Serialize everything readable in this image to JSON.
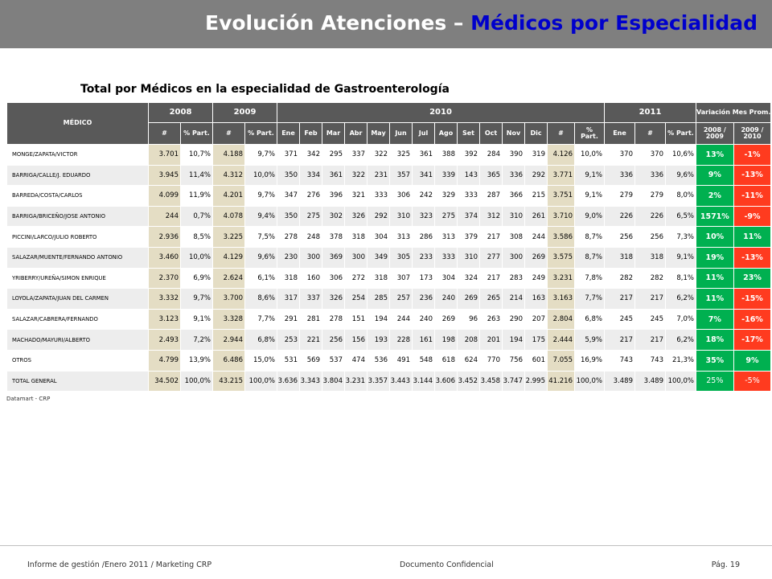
{
  "header": {
    "title_main": "Evolución Atenciones – ",
    "title_highlight": "Médicos por Especialidad"
  },
  "subtitle": "Total por Médicos en la especialidad de Gastroenterología",
  "table": {
    "medico_header": "MÉDICO",
    "years": [
      "2008",
      "2009",
      "2010",
      "2011"
    ],
    "variacion_header": "Variación Mes Prom.",
    "col_num": "#",
    "col_part": "% Part.",
    "months": [
      "Ene",
      "Feb",
      "Mar",
      "Abr",
      "May",
      "Jun",
      "Jul",
      "Ago",
      "Set",
      "Oct",
      "Nov",
      "Dic"
    ],
    "col_2010_part": "%\nPart.",
    "col_2011_ene": "Ene",
    "var_cols": [
      "2008 / 2009",
      "2009 / 2010"
    ],
    "rows": [
      {
        "name": "MONGE/ZAPATA/VICTOR",
        "c": [
          "3.701",
          "10,7%",
          "4.188",
          "9,7%",
          "371",
          "342",
          "295",
          "337",
          "322",
          "325",
          "361",
          "388",
          "392",
          "284",
          "390",
          "319",
          "4.126",
          "10,0%",
          "370",
          "370",
          "10,6%"
        ],
        "v1": "13%",
        "v1c": "green",
        "v2": "-1%",
        "v2c": "red"
      },
      {
        "name": "BARRIGA/CALLE/J. EDUARDO",
        "c": [
          "3.945",
          "11,4%",
          "4.312",
          "10,0%",
          "350",
          "334",
          "361",
          "322",
          "231",
          "357",
          "341",
          "339",
          "143",
          "365",
          "336",
          "292",
          "3.771",
          "9,1%",
          "336",
          "336",
          "9,6%"
        ],
        "v1": "9%",
        "v1c": "green",
        "v2": "-13%",
        "v2c": "red"
      },
      {
        "name": "BARREDA/COSTA/CARLOS",
        "c": [
          "4.099",
          "11,9%",
          "4.201",
          "9,7%",
          "347",
          "276",
          "396",
          "321",
          "333",
          "306",
          "242",
          "329",
          "333",
          "287",
          "366",
          "215",
          "3.751",
          "9,1%",
          "279",
          "279",
          "8,0%"
        ],
        "v1": "2%",
        "v1c": "green",
        "v2": "-11%",
        "v2c": "red"
      },
      {
        "name": "BARRIGA/BRICEÑO/JOSE ANTONIO",
        "c": [
          "244",
          "0,7%",
          "4.078",
          "9,4%",
          "350",
          "275",
          "302",
          "326",
          "292",
          "310",
          "323",
          "275",
          "374",
          "312",
          "310",
          "261",
          "3.710",
          "9,0%",
          "226",
          "226",
          "6,5%"
        ],
        "v1": "1571%",
        "v1c": "green",
        "v2": "-9%",
        "v2c": "red"
      },
      {
        "name": "PICCINI/LARCO/JULIO ROBERTO",
        "c": [
          "2.936",
          "8,5%",
          "3.225",
          "7,5%",
          "278",
          "248",
          "378",
          "318",
          "304",
          "313",
          "286",
          "313",
          "379",
          "217",
          "308",
          "244",
          "3.586",
          "8,7%",
          "256",
          "256",
          "7,3%"
        ],
        "v1": "10%",
        "v1c": "green",
        "v2": "11%",
        "v2c": "green"
      },
      {
        "name": "SALAZAR/MUENTE/FERNANDO ANTONIO",
        "c": [
          "3.460",
          "10,0%",
          "4.129",
          "9,6%",
          "230",
          "300",
          "369",
          "300",
          "349",
          "305",
          "233",
          "333",
          "310",
          "277",
          "300",
          "269",
          "3.575",
          "8,7%",
          "318",
          "318",
          "9,1%"
        ],
        "v1": "19%",
        "v1c": "green",
        "v2": "-13%",
        "v2c": "red"
      },
      {
        "name": "YRIBERRY/UREÑA/SIMON ENRIQUE",
        "c": [
          "2.370",
          "6,9%",
          "2.624",
          "6,1%",
          "318",
          "160",
          "306",
          "272",
          "318",
          "307",
          "173",
          "304",
          "324",
          "217",
          "283",
          "249",
          "3.231",
          "7,8%",
          "282",
          "282",
          "8,1%"
        ],
        "v1": "11%",
        "v1c": "green",
        "v2": "23%",
        "v2c": "green"
      },
      {
        "name": "LOYOLA/ZAPATA/JUAN DEL CARMEN",
        "c": [
          "3.332",
          "9,7%",
          "3.700",
          "8,6%",
          "317",
          "337",
          "326",
          "254",
          "285",
          "257",
          "236",
          "240",
          "269",
          "265",
          "214",
          "163",
          "3.163",
          "7,7%",
          "217",
          "217",
          "6,2%"
        ],
        "v1": "11%",
        "v1c": "green",
        "v2": "-15%",
        "v2c": "red"
      },
      {
        "name": "SALAZAR/CABRERA/FERNANDO",
        "c": [
          "3.123",
          "9,1%",
          "3.328",
          "7,7%",
          "291",
          "281",
          "278",
          "151",
          "194",
          "244",
          "240",
          "269",
          "96",
          "263",
          "290",
          "207",
          "2.804",
          "6,8%",
          "245",
          "245",
          "7,0%"
        ],
        "v1": "7%",
        "v1c": "green",
        "v2": "-16%",
        "v2c": "red"
      },
      {
        "name": "MACHADO/MAYURI/ALBERTO",
        "c": [
          "2.493",
          "7,2%",
          "2.944",
          "6,8%",
          "253",
          "221",
          "256",
          "156",
          "193",
          "228",
          "161",
          "198",
          "208",
          "201",
          "194",
          "175",
          "2.444",
          "5,9%",
          "217",
          "217",
          "6,2%"
        ],
        "v1": "18%",
        "v1c": "green",
        "v2": "-17%",
        "v2c": "red"
      },
      {
        "name": "OTROS",
        "c": [
          "4.799",
          "13,9%",
          "6.486",
          "15,0%",
          "531",
          "569",
          "537",
          "474",
          "536",
          "491",
          "548",
          "618",
          "624",
          "770",
          "756",
          "601",
          "7.055",
          "16,9%",
          "743",
          "743",
          "21,3%"
        ],
        "v1": "35%",
        "v1c": "green",
        "v2": "9%",
        "v2c": "green"
      },
      {
        "name": "TOTAL GENERAL",
        "c": [
          "34.502",
          "100,0%",
          "43.215",
          "100,0%",
          "3.636",
          "3.343",
          "3.804",
          "3.231",
          "3.357",
          "3.443",
          "3.144",
          "3.606",
          "3.452",
          "3.458",
          "3.747",
          "2.995",
          "41.216",
          "100,0%",
          "3.489",
          "3.489",
          "100,0%"
        ],
        "v1": "25%",
        "v1c": "green",
        "v2": "-5%",
        "v2c": "red"
      }
    ]
  },
  "source": "Datamart - CRP",
  "footer": {
    "left": "Informe de gestión /Enero 2011 / Marketing CRP",
    "center": "Documento Confidencial",
    "right": "Pág. 19"
  }
}
